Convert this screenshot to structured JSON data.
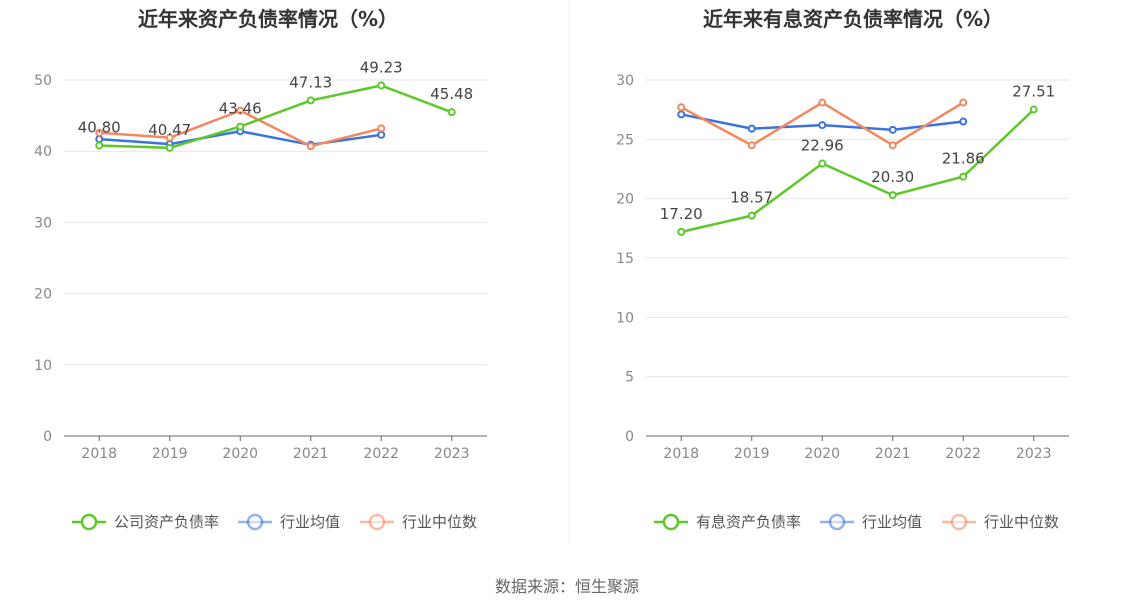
{
  "source": "数据来源：恒生聚源",
  "colors": {
    "company": "#5cc929",
    "average": "#3a73e0",
    "median": "#f3875e",
    "grid": "#e6e6e6",
    "axis": "#666666"
  },
  "chart_data": [
    {
      "type": "line",
      "title": "近年来资产负债率情况（%）",
      "categories": [
        "2018",
        "2019",
        "2020",
        "2021",
        "2022",
        "2023"
      ],
      "ylim": [
        0,
        50
      ],
      "yticks": [
        "0",
        "10",
        "20",
        "30",
        "40",
        "50"
      ],
      "grid": true,
      "legend_position": "bottom",
      "series": [
        {
          "name": "公司资产负债率",
          "color": "#5cc929",
          "values": [
            40.8,
            40.47,
            43.46,
            47.13,
            49.23,
            45.48
          ],
          "labels": [
            "40.80",
            "40.47",
            "43.46",
            "47.13",
            "49.23",
            "45.48"
          ]
        },
        {
          "name": "行业均值",
          "color": "#3a73e0",
          "values": [
            41.7,
            41.0,
            42.8,
            40.9,
            42.3,
            null
          ]
        },
        {
          "name": "行业中位数",
          "color": "#f3875e",
          "values": [
            42.6,
            41.9,
            45.7,
            40.7,
            43.2,
            null
          ]
        }
      ]
    },
    {
      "type": "line",
      "title": "近年来有息资产负债率情况（%）",
      "categories": [
        "2018",
        "2019",
        "2020",
        "2021",
        "2022",
        "2023"
      ],
      "ylim": [
        0,
        30
      ],
      "yticks": [
        "0",
        "5",
        "10",
        "15",
        "20",
        "25",
        "30"
      ],
      "grid": true,
      "legend_position": "bottom",
      "series": [
        {
          "name": "有息资产负债率",
          "color": "#5cc929",
          "values": [
            17.2,
            18.57,
            22.96,
            20.3,
            21.86,
            27.51
          ],
          "labels": [
            "17.20",
            "18.57",
            "22.96",
            "20.30",
            "21.86",
            "27.51"
          ]
        },
        {
          "name": "行业均值",
          "color": "#3a73e0",
          "values": [
            27.1,
            25.9,
            26.2,
            25.8,
            26.5,
            null
          ]
        },
        {
          "name": "行业中位数",
          "color": "#f3875e",
          "values": [
            27.7,
            24.5,
            28.1,
            24.5,
            28.1,
            null
          ]
        }
      ]
    }
  ]
}
